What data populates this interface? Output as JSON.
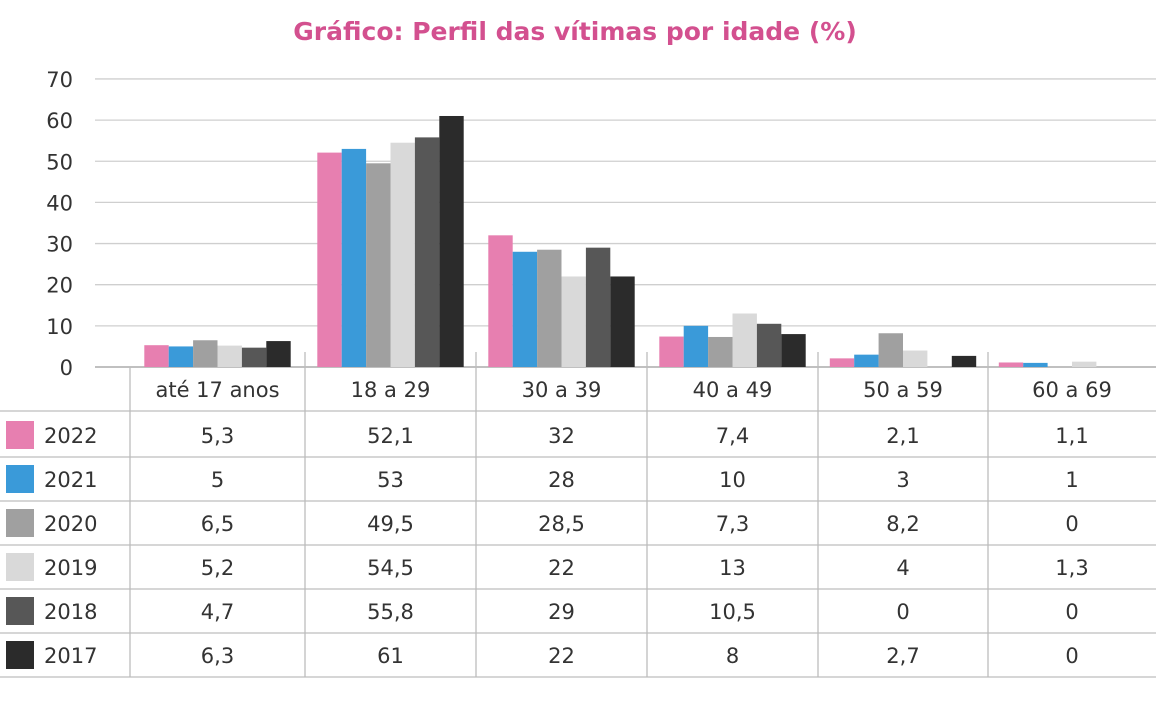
{
  "chart_data": {
    "type": "bar",
    "title": "Gráfico: Perfil das vítimas por idade (%)",
    "xlabel": "",
    "ylabel": "",
    "ylim": [
      0,
      70
    ],
    "yticks": [
      0,
      10,
      20,
      30,
      40,
      50,
      60,
      70
    ],
    "grid": true,
    "legend": "table-left",
    "categories": [
      "até 17 anos",
      "18 a 29",
      "30 a 39",
      "40 a 49",
      "50 a 59",
      "60 a 69"
    ],
    "series": [
      {
        "name": "2022",
        "color": "#e77fb0",
        "values": [
          5.3,
          52.1,
          32,
          7.4,
          2.1,
          1.1
        ],
        "labels": [
          "5,3",
          "52,1",
          "32",
          "7,4",
          "2,1",
          "1,1"
        ]
      },
      {
        "name": "2021",
        "color": "#3a9ad9",
        "values": [
          5,
          53,
          28,
          10,
          3,
          1
        ],
        "labels": [
          "5",
          "53",
          "28",
          "10",
          "3",
          "1"
        ]
      },
      {
        "name": "2020",
        "color": "#a0a0a0",
        "values": [
          6.5,
          49.5,
          28.5,
          7.3,
          8.2,
          0
        ],
        "labels": [
          "6,5",
          "49,5",
          "28,5",
          "7,3",
          "8,2",
          "0"
        ]
      },
      {
        "name": "2019",
        "color": "#d9d9d9",
        "values": [
          5.2,
          54.5,
          22,
          13,
          4,
          1.3
        ],
        "labels": [
          "5,2",
          "54,5",
          "22",
          "13",
          "4",
          "1,3"
        ]
      },
      {
        "name": "2018",
        "color": "#575757",
        "values": [
          4.7,
          55.8,
          29,
          10.5,
          0,
          0
        ],
        "labels": [
          "4,7",
          "55,8",
          "29",
          "10,5",
          "0",
          "0"
        ]
      },
      {
        "name": "2017",
        "color": "#2b2b2b",
        "values": [
          6.3,
          61,
          22,
          8,
          2.7,
          0
        ],
        "labels": [
          "6,3",
          "61",
          "22",
          "8",
          "2,7",
          "0"
        ]
      }
    ]
  }
}
